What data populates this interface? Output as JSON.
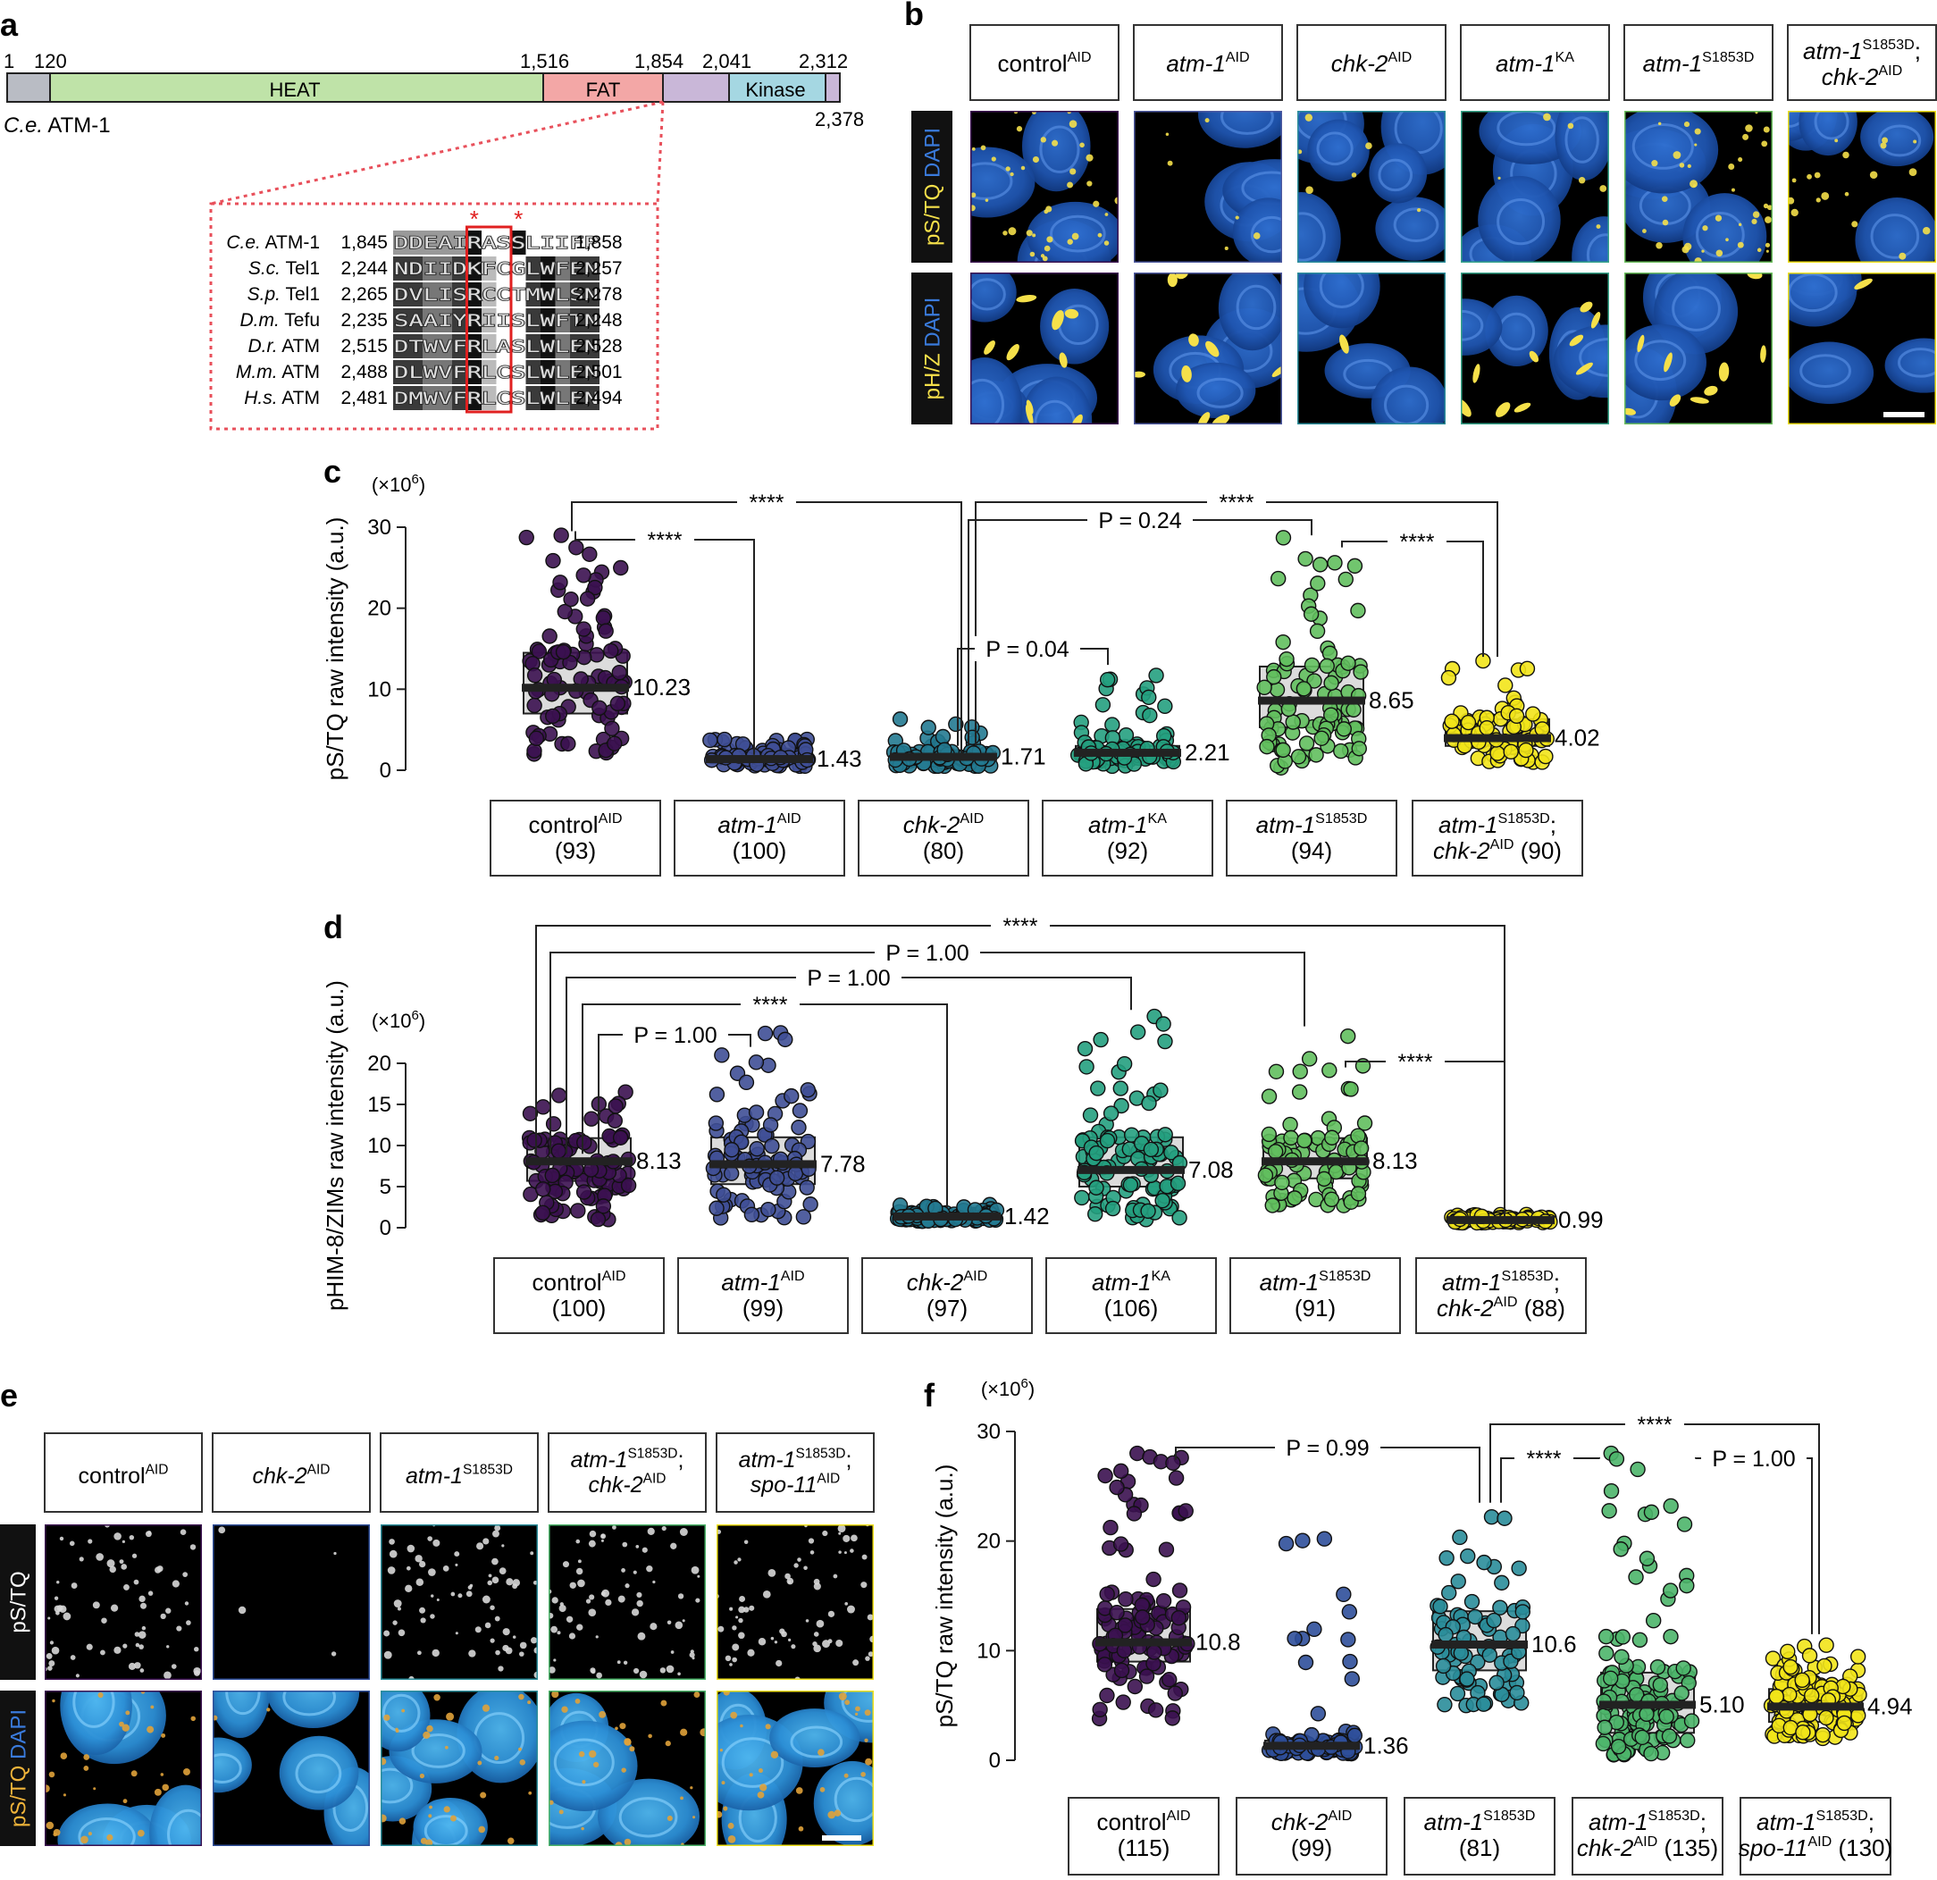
{
  "panels": {
    "a": {
      "letter": "a",
      "protein": "ATM-1",
      "protein_species": "C.e.",
      "domain_positions": [
        "1",
        "120",
        "1,516",
        "1,854",
        "2,041",
        "2,312",
        "2,378"
      ],
      "domains": {
        "heat": "HEAT",
        "fat": "FAT",
        "kinase": "Kinase"
      },
      "alignment": [
        {
          "species": "C.e.",
          "name": "ATM-1",
          "start": "1,845",
          "seq": "DDEAIRASSLIIFP",
          "end": "1,858"
        },
        {
          "species": "S.c.",
          "name": "Tel1",
          "start": "2,244",
          "seq": "NDIIDKFCGLWFEN",
          "end": "2,257"
        },
        {
          "species": "S.p.",
          "name": "Tel1",
          "start": "2,265",
          "seq": "DVLISRCCTMWLSN",
          "end": "2,278"
        },
        {
          "species": "D.m.",
          "name": "Tefu",
          "start": "2,235",
          "seq": "SAAIYRIISLWFTN",
          "end": "2,248"
        },
        {
          "species": "D.r.",
          "name": "ATM",
          "start": "2,515",
          "seq": "DTWVFRLASLWLEN",
          "end": "2,528"
        },
        {
          "species": "M.m.",
          "name": "ATM",
          "start": "2,488",
          "seq": "DLWVFRLCSLWLEN",
          "end": "2,501"
        },
        {
          "species": "H.s.",
          "name": "ATM",
          "start": "2,481",
          "seq": "DMWVFRLCSLWLEN",
          "end": "2,494"
        }
      ],
      "asterisk": "*"
    },
    "b": {
      "letter": "b",
      "columns": [
        {
          "name": "control",
          "sup": "AID",
          "italic": false
        },
        {
          "name": "atm-1",
          "sup": "AID",
          "italic": true
        },
        {
          "name": "chk-2",
          "sup": "AID",
          "italic": true
        },
        {
          "name": "atm-1",
          "sup": "KA",
          "italic": true
        },
        {
          "name": "atm-1",
          "sup": "S1853D",
          "italic": true
        },
        {
          "name": "atm-1",
          "sup": "S1853D",
          "line2": "chk-2",
          "sup2": "AID",
          "italic": true
        }
      ],
      "row_labels": [
        {
          "marker": "pS/TQ",
          "stain": "DAPI"
        },
        {
          "marker": "pH/Z",
          "stain": "DAPI"
        }
      ],
      "frame_colors": [
        "#3b1150",
        "#4e5aa0",
        "#2a8d9a",
        "#36a58a",
        "#6cbf5e",
        "#f0e11a"
      ]
    },
    "c": {
      "letter": "c",
      "ylabel": "pS/TQ raw intensity (a.u.)",
      "yunit_base": "(×10",
      "yunit_exp": "6",
      "yunit_close": ")",
      "yticks": [
        "0",
        "10",
        "20",
        "30"
      ],
      "medians": [
        "10.23",
        "1.43",
        "1.71",
        "2.21",
        "8.65",
        "4.02"
      ],
      "groups": [
        {
          "name": "control",
          "sup": "AID",
          "n": "(93)",
          "italic": false
        },
        {
          "name": "atm-1",
          "sup": "AID",
          "n": "(100)",
          "italic": true
        },
        {
          "name": "chk-2",
          "sup": "AID",
          "n": "(80)",
          "italic": true
        },
        {
          "name": "atm-1",
          "sup": "KA",
          "n": "(92)",
          "italic": true
        },
        {
          "name": "atm-1",
          "sup": "S1853D",
          "n": "(94)",
          "italic": true
        },
        {
          "name": "atm-1",
          "sup": "S1853D",
          "line2": "chk-2",
          "sup2": "AID",
          "n": "(90)",
          "italic": true
        }
      ],
      "stats": [
        "****",
        "****",
        "P = 0.24",
        "****",
        "P = 0.04",
        "****"
      ]
    },
    "d": {
      "letter": "d",
      "ylabel": "pHIM-8/ZIMs raw intensity (a.u.)",
      "yunit_base": "(×10",
      "yunit_exp": "6",
      "yunit_close": ")",
      "yticks": [
        "0",
        "5",
        "10",
        "15",
        "20"
      ],
      "medians": [
        "8.13",
        "7.78",
        "1.42",
        "7.08",
        "8.13",
        "0.99"
      ],
      "groups": [
        {
          "name": "control",
          "sup": "AID",
          "n": "(100)",
          "italic": false
        },
        {
          "name": "atm-1",
          "sup": "AID",
          "n": "(99)",
          "italic": true
        },
        {
          "name": "chk-2",
          "sup": "AID",
          "n": "(97)",
          "italic": true
        },
        {
          "name": "atm-1",
          "sup": "KA",
          "n": "(106)",
          "italic": true
        },
        {
          "name": "atm-1",
          "sup": "S1853D",
          "n": "(91)",
          "italic": true
        },
        {
          "name": "atm-1",
          "sup": "S1853D",
          "line2": "chk-2",
          "sup2": "AID",
          "n": "(88)",
          "italic": true
        }
      ],
      "stats": [
        "****",
        "P = 1.00",
        "P = 1.00",
        "****",
        "P = 1.00",
        "****"
      ]
    },
    "e": {
      "letter": "e",
      "columns": [
        {
          "name": "control",
          "sup": "AID",
          "italic": false
        },
        {
          "name": "chk-2",
          "sup": "AID",
          "italic": true
        },
        {
          "name": "atm-1",
          "sup": "S1853D",
          "italic": true
        },
        {
          "name": "atm-1",
          "sup": "S1853D",
          "line2": "chk-2",
          "sup2": "AID",
          "italic": true
        },
        {
          "name": "atm-1",
          "sup": "S1853D",
          "line2": "spo-11",
          "sup2": "AID",
          "italic": true
        }
      ],
      "row_labels": [
        {
          "marker": "pS/TQ",
          "stain": ""
        },
        {
          "marker": "pS/TQ",
          "stain": "DAPI"
        }
      ],
      "frame_colors": [
        "#3b1150",
        "#2f4f9a",
        "#2a8d9a",
        "#4cb56a",
        "#f0e11a"
      ]
    },
    "f": {
      "letter": "f",
      "ylabel": "pS/TQ raw intensity (a.u.)",
      "yunit_base": "(×10",
      "yunit_exp": "6",
      "yunit_close": ")",
      "yticks": [
        "0",
        "10",
        "20",
        "30"
      ],
      "medians": [
        "10.8",
        "1.36",
        "10.6",
        "5.10",
        "4.94"
      ],
      "groups": [
        {
          "name": "control",
          "sup": "AID",
          "n": "(115)",
          "italic": false
        },
        {
          "name": "chk-2",
          "sup": "AID",
          "n": "(99)",
          "italic": true
        },
        {
          "name": "atm-1",
          "sup": "S1853D",
          "n": "(81)",
          "italic": true
        },
        {
          "name": "atm-1",
          "sup": "S1853D",
          "line2": "chk-2",
          "sup2": "AID",
          "n": "(135)",
          "italic": true
        },
        {
          "name": "atm-1",
          "sup": "S1853D",
          "line2": "spo-11",
          "sup2": "AID",
          "n": "(130)",
          "italic": true
        }
      ],
      "stats": [
        "P = 0.99",
        "****",
        "****",
        "P = 1.00"
      ]
    }
  },
  "chart_data": [
    {
      "type": "scatter",
      "panel": "c",
      "ylabel": "pS/TQ raw intensity (a.u.)",
      "ylim": [
        0,
        30
      ],
      "categories": [
        "controlAID (93)",
        "atm-1AID (100)",
        "chk-2AID (80)",
        "atm-1KA (92)",
        "atm-1S1853D (94)",
        "atm-1S1853D; chk-2AID (90)"
      ],
      "n": [
        93,
        100,
        80,
        92,
        94,
        90
      ],
      "median": [
        10.23,
        1.43,
        1.71,
        2.21,
        8.65,
        4.02
      ],
      "q1": [
        7.0,
        1.2,
        1.2,
        1.4,
        5.3,
        3.0
      ],
      "q3": [
        14.5,
        1.8,
        2.3,
        3.0,
        12.8,
        6.3
      ],
      "min": [
        2.0,
        0.5,
        0.5,
        0.5,
        0.3,
        1.0
      ],
      "max": [
        29.0,
        3.8,
        6.3,
        11.7,
        28.7,
        13.5
      ],
      "colors": [
        "#3b1150",
        "#3f4f96",
        "#247a91",
        "#25a080",
        "#62bf5e",
        "#f2e41a"
      ]
    },
    {
      "type": "scatter",
      "panel": "d",
      "ylabel": "pHIM-8/ZIMs raw intensity (a.u.)",
      "ylim": [
        0,
        20
      ],
      "categories": [
        "controlAID (100)",
        "atm-1AID (99)",
        "chk-2AID (97)",
        "atm-1KA (106)",
        "atm-1S1853D (91)",
        "atm-1S1853D; chk-2AID (88)"
      ],
      "n": [
        100,
        99,
        97,
        106,
        91,
        88
      ],
      "median": [
        8.13,
        7.78,
        1.42,
        7.08,
        8.13,
        0.99
      ],
      "q1": [
        5.7,
        5.3,
        1.1,
        5.0,
        6.0,
        0.8
      ],
      "q3": [
        10.9,
        11.0,
        1.8,
        11.0,
        10.9,
        1.2
      ],
      "min": [
        1.0,
        1.2,
        0.8,
        1.0,
        2.7,
        0.6
      ],
      "max": [
        16.5,
        23.7,
        2.8,
        25.7,
        23.3,
        1.6
      ],
      "colors": [
        "#3b1150",
        "#3f4f96",
        "#247a91",
        "#25a080",
        "#62bf5e",
        "#f2e41a"
      ]
    },
    {
      "type": "scatter",
      "panel": "f",
      "ylabel": "pS/TQ raw intensity (a.u.)",
      "ylim": [
        0,
        30
      ],
      "categories": [
        "controlAID (115)",
        "chk-2AID (99)",
        "atm-1S1853D (81)",
        "atm-1S1853D; chk-2AID (135)",
        "atm-1S1853D; spo-11AID (130)"
      ],
      "n": [
        115,
        99,
        81,
        135,
        130
      ],
      "median": [
        10.8,
        1.36,
        10.6,
        5.1,
        4.94
      ],
      "q1": [
        9.0,
        1.0,
        8.2,
        2.5,
        3.5
      ],
      "q3": [
        13.8,
        1.8,
        13.6,
        8.0,
        6.5
      ],
      "min": [
        3.8,
        0.6,
        5.0,
        0.5,
        2.0
      ],
      "max": [
        28.0,
        20.2,
        22.2,
        28.0,
        10.5
      ],
      "colors": [
        "#3b1150",
        "#2f4f9a",
        "#2a8d9a",
        "#4cb56a",
        "#f2e41a"
      ]
    }
  ]
}
